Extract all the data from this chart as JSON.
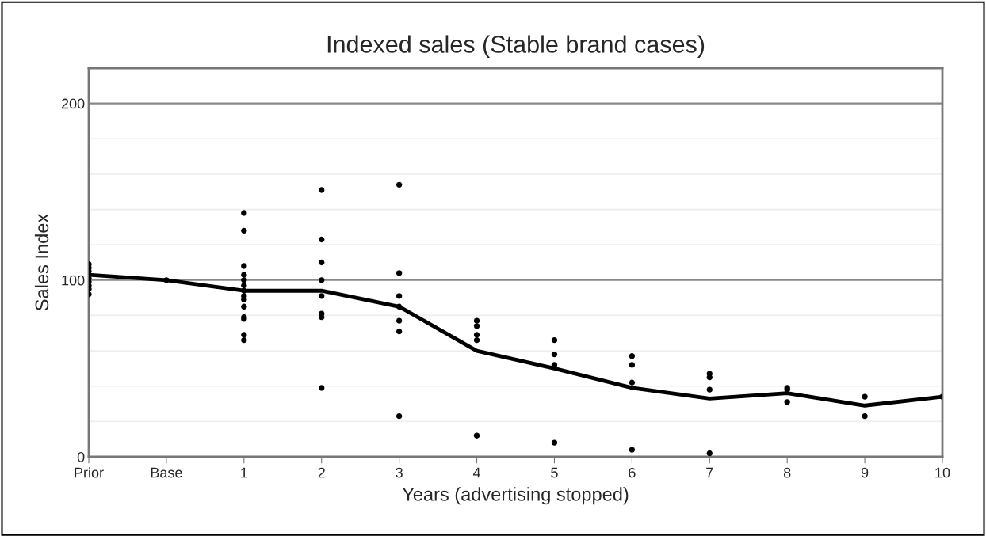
{
  "chart_data": {
    "type": "line",
    "title": "Indexed sales (Stable brand cases)",
    "xlabel": "Years (advertising stopped)",
    "ylabel": "Sales Index",
    "categories": [
      "Prior",
      "Base",
      "1",
      "2",
      "3",
      "4",
      "5",
      "6",
      "7",
      "8",
      "9",
      "10"
    ],
    "series": [
      {
        "type": "scatter",
        "color": "#000000",
        "marker": "circle",
        "x": [
          "Prior",
          "Prior",
          "Prior",
          "Prior",
          "Prior",
          "Prior",
          "Prior",
          "Prior",
          "Base",
          "1",
          "1",
          "1",
          "1",
          "1",
          "1",
          "1",
          "1",
          "1",
          "1",
          "1",
          "1",
          "1",
          "1",
          "2",
          "2",
          "2",
          "2",
          "2",
          "2",
          "2",
          "2",
          "3",
          "3",
          "3",
          "3",
          "3",
          "3",
          "3",
          "4",
          "4",
          "4",
          "4",
          "4",
          "5",
          "5",
          "5",
          "5",
          "6",
          "6",
          "6",
          "6",
          "7",
          "7",
          "7",
          "7",
          "8",
          "8",
          "8",
          "9",
          "9",
          "10"
        ],
        "values": [
          109,
          107,
          105,
          101,
          99,
          97,
          95,
          92,
          100,
          138,
          128,
          108,
          103,
          100,
          97,
          94,
          91,
          89,
          85,
          79,
          78,
          69,
          66,
          151,
          123,
          110,
          100,
          91,
          81,
          79,
          39,
          154,
          104,
          91,
          85,
          77,
          71,
          23,
          77,
          74,
          69,
          66,
          12,
          66,
          58,
          52,
          8,
          57,
          52,
          42,
          4,
          47,
          45,
          38,
          2,
          39,
          38,
          31,
          34,
          23,
          34
        ]
      },
      {
        "color": "#000000",
        "marker": "none",
        "line_style": "solid",
        "values": [
          103,
          100,
          94,
          94,
          85,
          60,
          50,
          39,
          33,
          36,
          29,
          34
        ]
      }
    ],
    "ylim": [
      0,
      220
    ],
    "yticks": [
      0,
      {
        "value": 20,
        "label": null
      },
      {
        "value": 40,
        "label": null
      },
      {
        "value": 60,
        "label": null
      },
      {
        "value": 80,
        "label": null
      },
      100,
      {
        "value": 120,
        "label": null
      },
      {
        "value": 140,
        "label": null
      },
      {
        "value": 160,
        "label": null
      },
      {
        "value": 180,
        "label": null
      },
      200
    ],
    "grid": "y"
  }
}
